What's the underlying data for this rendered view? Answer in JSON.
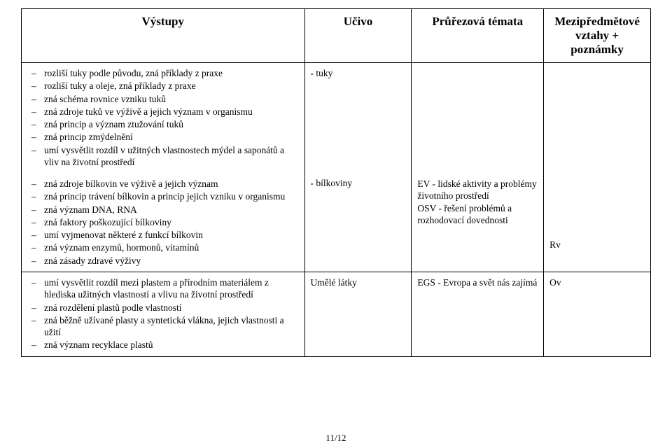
{
  "headers": {
    "col1": "Výstupy",
    "col2": "Učivo",
    "col3": "Průřezová témata",
    "col4_line1": "Mezipředmětové",
    "col4_line2": "vztahy + poznámky"
  },
  "row1": {
    "outputs_group1": [
      "rozliší tuky podle původu, zná příklady z praxe",
      "rozliší tuky a oleje, zná příklady z praxe",
      "zná schéma rovnice vzniku tuků",
      "zná zdroje tuků ve výživě a jejich význam v organismu",
      "zná princip a význam ztužování tuků",
      "zná princip zmýdelnění",
      "umí vysvětlit rozdíl v užitných vlastnostech mýdel a saponátů a vliv na životní prostředí"
    ],
    "outputs_group2": [
      "zná zdroje bílkovin ve výživě a jejich význam",
      "zná princip trávení bílkovin a princip jejich vzniku v  organismu",
      "zná význam DNA, RNA",
      "zná faktory poškozující bílkoviny",
      "umí vyjmenovat některé z funkcí bílkovin",
      "zná význam enzymů, hormonů, vitamínů",
      "zná zásady zdravé výživy"
    ],
    "ucivo1": "- tuky",
    "ucivo2": "- bílkoviny",
    "temata2": "EV - lidské aktivity a problémy životního prostředí\nOSV - řešení problémů a rozhodovací dovednosti",
    "vztahy2": "Rv"
  },
  "row2": {
    "outputs": [
      "umí vysvětlit rozdíl mezi plastem a přírodním materiálem z hlediska užitných vlastností a vlivu na životní prostředí",
      "zná rozdělení plastů podle vlastností",
      "zná běžně užívané plasty a syntetická vlákna, jejich vlastnosti a užití",
      "zná význam recyklace plastů"
    ],
    "ucivo": "Umělé látky",
    "temata": "EGS - Evropa a svět nás zajímá",
    "vztahy": "Ov"
  },
  "footer": "11/12",
  "colors": {
    "text": "#000000",
    "bg": "#ffffff",
    "border": "#000000"
  }
}
